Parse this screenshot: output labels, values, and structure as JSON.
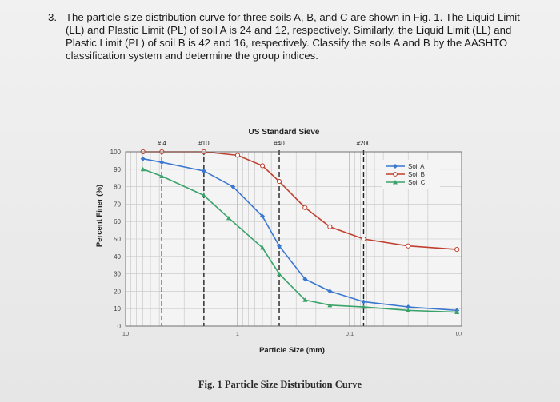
{
  "question": {
    "number": "3.",
    "lines": [
      "The particle size distribution curve for three soils A, B, and C are shown in Fig. 1. The Liquid Limit",
      "(LL) and Plastic Limit (PL) of soil A is 24 and 12, respectively.  Similarly, the Liquid Limit (LL) and",
      "Plastic Limit (PL) of soil B is 42 and 16, respectively. Classify the soils A and B by the AASHTO",
      "classification system and determine the group indices."
    ]
  },
  "caption": "Fig. 1 Particle Size Distribution Curve",
  "chart_data": {
    "type": "line",
    "title": "US Standard Sieve",
    "xlabel": "Particle Size (mm)",
    "ylabel": "Percent Finer (%)",
    "x_scale": "log",
    "x_reversed": true,
    "xlim": [
      10,
      0.01
    ],
    "ylim": [
      0,
      100
    ],
    "yticks": [
      "0",
      "10",
      "20",
      "30",
      "40",
      "50",
      "60",
      "70",
      "80",
      "90",
      "100"
    ],
    "xtick_labels": [
      {
        "value": 10,
        "label": "10"
      },
      {
        "value": 1,
        "label": "1"
      },
      {
        "value": 0.1,
        "label": "0.1"
      },
      {
        "value": 0.01,
        "label": "0.01"
      }
    ],
    "sieves": [
      {
        "name": "# 4",
        "size": 4.75
      },
      {
        "name": "#10",
        "size": 2.0
      },
      {
        "name": "#40",
        "size": 0.425
      },
      {
        "name": "#200",
        "size": 0.075
      }
    ],
    "grid": true,
    "legend_position": "top-right",
    "series": [
      {
        "name": "Soil A",
        "color": "#3a78d0",
        "marker": "diamond",
        "x": [
          7,
          4.75,
          2.0,
          1.1,
          0.6,
          0.425,
          0.25,
          0.15,
          0.075,
          0.03,
          0.011
        ],
        "y": [
          96,
          94,
          89,
          80,
          63,
          46,
          27,
          20,
          14,
          11,
          9
        ]
      },
      {
        "name": "Soil B",
        "color": "#c04030",
        "marker": "circle",
        "x": [
          7,
          4.75,
          2.0,
          1.0,
          0.6,
          0.425,
          0.25,
          0.15,
          0.075,
          0.03,
          0.011
        ],
        "y": [
          100,
          100,
          100,
          98,
          92,
          83,
          68,
          57,
          50,
          46,
          44
        ]
      },
      {
        "name": "Soil C",
        "color": "#3aa36a",
        "marker": "triangle",
        "x": [
          7,
          4.75,
          2.0,
          1.2,
          0.6,
          0.425,
          0.25,
          0.15,
          0.075,
          0.03,
          0.011
        ],
        "y": [
          90,
          86,
          75,
          62,
          45,
          30,
          15,
          12,
          11,
          9,
          8
        ]
      }
    ]
  }
}
